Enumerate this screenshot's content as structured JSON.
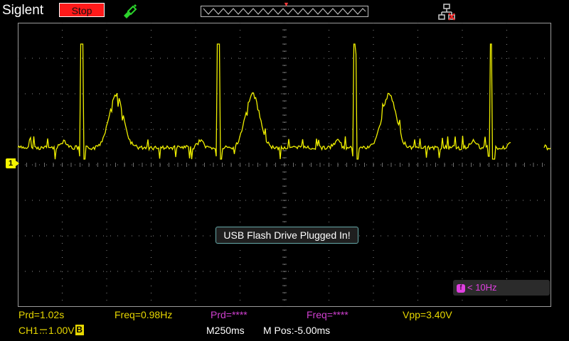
{
  "header": {
    "brand": "Siglent",
    "run_state": "Stop",
    "trigger_icon": "green-probe-icon",
    "usb_icon": "usb-disconnect-icon"
  },
  "channel": {
    "label": "1",
    "coupling_icon": "dc-coupling-icon",
    "scale_label": "CH1",
    "scale_value": "1.00V",
    "bw_limit": "B"
  },
  "notification": "USB Flash Drive Plugged In!",
  "trigger_status": "< 10Hz",
  "trigger_glyph": "f",
  "measurements": {
    "prd": "Prd=1.02s",
    "freq": "Freq=0.98Hz",
    "prd2": "Prd=****",
    "freq2": "Freq=****",
    "vpp": "Vpp=3.40V"
  },
  "timebase": {
    "scale": "M250ms",
    "position": "M Pos:-5.00ms"
  },
  "colors": {
    "trace": "#f0f000",
    "grid": "#9a9a9a",
    "accent_stop": "#ff1a1a",
    "measure_yellow": "#e8d800",
    "measure_magenta": "#d040d0"
  }
}
